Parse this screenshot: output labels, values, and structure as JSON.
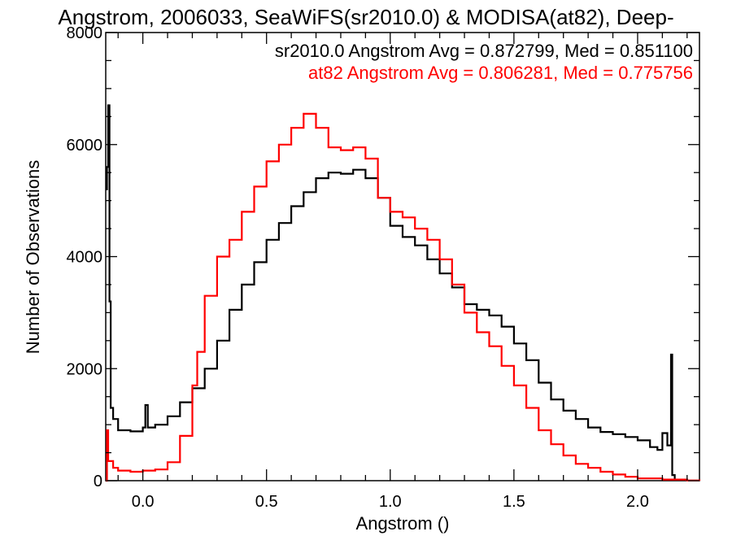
{
  "chart_data": {
    "type": "line",
    "title": "Angstrom, 2006033, SeaWiFS(sr2010.0) & MODISA(at82), Deep-",
    "xlabel": "Angstrom ()",
    "ylabel": "Number of Observations",
    "xlim": [
      -0.15,
      2.25
    ],
    "ylim": [
      0,
      8000
    ],
    "xticks": [
      "0.0",
      "0.5",
      "1.0",
      "1.5",
      "2.0"
    ],
    "xtick_values": [
      0.0,
      0.5,
      1.0,
      1.5,
      2.0
    ],
    "yticks": [
      "0",
      "2000",
      "4000",
      "6000",
      "8000"
    ],
    "ytick_values": [
      0,
      2000,
      4000,
      6000,
      8000
    ],
    "grid": false,
    "step_histogram": true,
    "legend_placement": "top-right",
    "series": [
      {
        "color": "#000000",
        "label": "sr2010.0 Angstrom Avg = 0.872799, Med = 0.851100",
        "points": [
          [
            -0.15,
            5200
          ],
          [
            -0.145,
            5600
          ],
          [
            -0.14,
            6700
          ],
          [
            -0.135,
            3200
          ],
          [
            -0.13,
            1300
          ],
          [
            -0.12,
            1100
          ],
          [
            -0.1,
            900
          ],
          [
            -0.05,
            880
          ],
          [
            0.0,
            950
          ],
          [
            0.01,
            1350
          ],
          [
            0.02,
            950
          ],
          [
            0.05,
            1000
          ],
          [
            0.1,
            1150
          ],
          [
            0.15,
            1400
          ],
          [
            0.2,
            1650
          ],
          [
            0.25,
            2000
          ],
          [
            0.3,
            2500
          ],
          [
            0.35,
            3050
          ],
          [
            0.4,
            3500
          ],
          [
            0.45,
            3900
          ],
          [
            0.5,
            4300
          ],
          [
            0.55,
            4600
          ],
          [
            0.6,
            4900
          ],
          [
            0.65,
            5150
          ],
          [
            0.7,
            5400
          ],
          [
            0.75,
            5500
          ],
          [
            0.8,
            5480
          ],
          [
            0.85,
            5550
          ],
          [
            0.9,
            5400
          ],
          [
            0.95,
            5050
          ],
          [
            1.0,
            4550
          ],
          [
            1.05,
            4350
          ],
          [
            1.1,
            4200
          ],
          [
            1.15,
            3950
          ],
          [
            1.2,
            3700
          ],
          [
            1.25,
            3450
          ],
          [
            1.3,
            3150
          ],
          [
            1.35,
            3050
          ],
          [
            1.4,
            2950
          ],
          [
            1.45,
            2750
          ],
          [
            1.5,
            2450
          ],
          [
            1.55,
            2150
          ],
          [
            1.6,
            1750
          ],
          [
            1.65,
            1450
          ],
          [
            1.7,
            1250
          ],
          [
            1.75,
            1100
          ],
          [
            1.8,
            950
          ],
          [
            1.85,
            870
          ],
          [
            1.9,
            830
          ],
          [
            1.95,
            780
          ],
          [
            2.0,
            720
          ],
          [
            2.05,
            600
          ],
          [
            2.08,
            550
          ],
          [
            2.1,
            850
          ],
          [
            2.12,
            630
          ],
          [
            2.135,
            2250
          ],
          [
            2.14,
            100
          ],
          [
            2.15,
            0
          ]
        ]
      },
      {
        "color": "#ff0000",
        "label": "at82 Angstrom Avg = 0.806281, Med = 0.775756",
        "points": [
          [
            -0.15,
            0
          ],
          [
            -0.145,
            900
          ],
          [
            -0.14,
            350
          ],
          [
            -0.12,
            230
          ],
          [
            -0.1,
            180
          ],
          [
            -0.05,
            160
          ],
          [
            0.0,
            180
          ],
          [
            0.05,
            200
          ],
          [
            0.1,
            330
          ],
          [
            0.15,
            800
          ],
          [
            0.2,
            1700
          ],
          [
            0.22,
            2300
          ],
          [
            0.25,
            3300
          ],
          [
            0.3,
            4000
          ],
          [
            0.35,
            4300
          ],
          [
            0.4,
            4800
          ],
          [
            0.45,
            5250
          ],
          [
            0.5,
            5700
          ],
          [
            0.55,
            6000
          ],
          [
            0.6,
            6300
          ],
          [
            0.65,
            6550
          ],
          [
            0.7,
            6300
          ],
          [
            0.75,
            5950
          ],
          [
            0.8,
            5900
          ],
          [
            0.85,
            5950
          ],
          [
            0.9,
            5750
          ],
          [
            0.95,
            5050
          ],
          [
            1.0,
            4800
          ],
          [
            1.05,
            4700
          ],
          [
            1.1,
            4500
          ],
          [
            1.15,
            4300
          ],
          [
            1.2,
            3950
          ],
          [
            1.25,
            3500
          ],
          [
            1.3,
            3000
          ],
          [
            1.35,
            2650
          ],
          [
            1.4,
            2400
          ],
          [
            1.45,
            2050
          ],
          [
            1.5,
            1700
          ],
          [
            1.55,
            1300
          ],
          [
            1.6,
            900
          ],
          [
            1.65,
            650
          ],
          [
            1.7,
            450
          ],
          [
            1.75,
            300
          ],
          [
            1.8,
            230
          ],
          [
            1.85,
            160
          ],
          [
            1.9,
            110
          ],
          [
            1.95,
            70
          ],
          [
            2.0,
            40
          ],
          [
            2.1,
            20
          ],
          [
            2.2,
            5
          ],
          [
            2.25,
            0
          ]
        ]
      }
    ]
  }
}
